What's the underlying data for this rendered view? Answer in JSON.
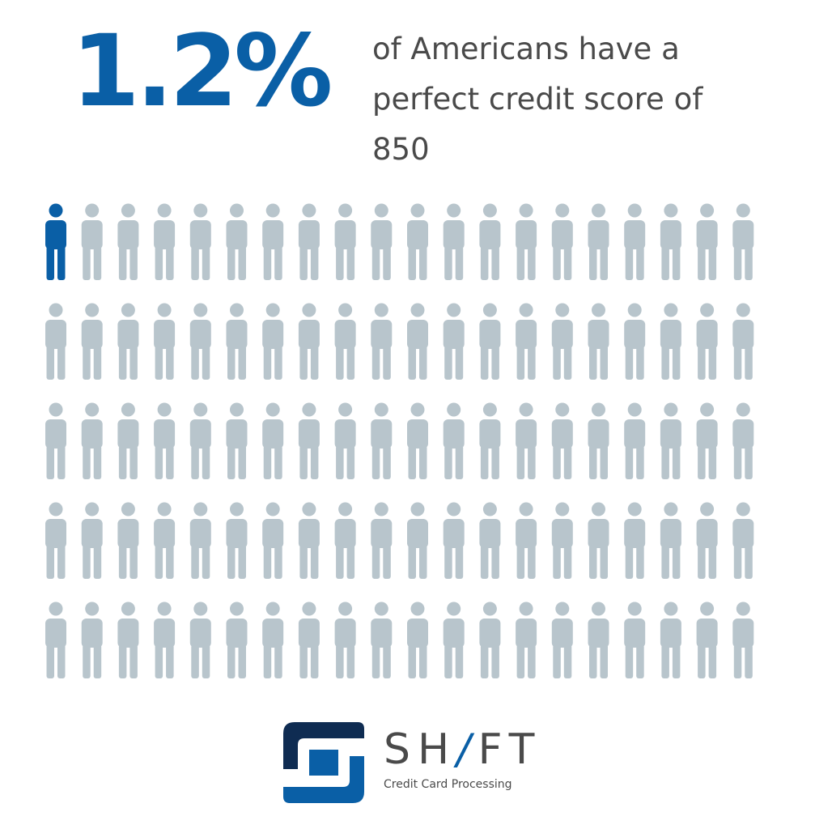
{
  "chart_data": {
    "type": "pictogram",
    "highlight_value": "1.2%",
    "statement_lines": [
      "of Americans have a",
      "perfect credit score of",
      "850"
    ],
    "rows": 5,
    "columns": 20,
    "total_icons": 100,
    "highlighted_icons": 1,
    "icon": "person-icon"
  },
  "logo": {
    "name_part1": "SH",
    "name_slash": "/",
    "name_part2": "FT",
    "tagline": "Credit Card Processing"
  },
  "colors": {
    "highlight": "#0a5fa6",
    "muted": "#b8c5cc",
    "text": "#4a4a4a",
    "logo_dark": "#0f2c52",
    "logo_blue": "#0a5fa6"
  }
}
